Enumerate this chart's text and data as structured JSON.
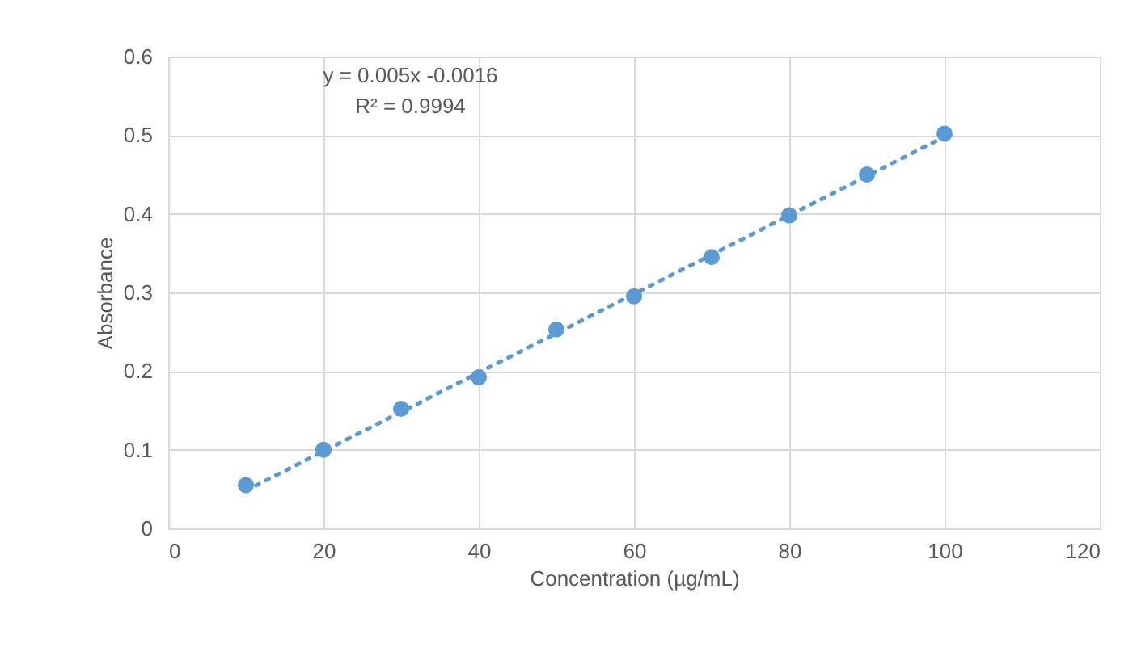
{
  "chart_data": {
    "type": "scatter",
    "xlabel": "Concentration (µg/mL)",
    "ylabel": "Absorbance",
    "xlim": [
      0,
      120
    ],
    "xticks": [
      0,
      20,
      40,
      60,
      80,
      100,
      120
    ],
    "ylim": [
      0,
      0.6
    ],
    "yticks": [
      {
        "value": 0,
        "label": "0"
      },
      0.1,
      0.2,
      0.3,
      0.4,
      0.5,
      0.6
    ],
    "grid": true,
    "marker": "circle",
    "annotations": [
      "y = 0.005x -0.0016",
      "R² = 0.9994"
    ],
    "series": [
      {
        "type": "line",
        "color": "#5b9bd5",
        "line_style": "dotted",
        "marker": "none",
        "x": [
          10,
          100
        ],
        "values": [
          0.048,
          0.498
        ]
      },
      {
        "color": "#5b9bd5",
        "x": [
          10,
          20,
          30,
          40,
          50,
          60,
          70,
          80,
          90,
          100
        ],
        "values": [
          0.055,
          0.1,
          0.152,
          0.192,
          0.253,
          0.295,
          0.345,
          0.398,
          0.45,
          0.502
        ]
      }
    ]
  }
}
